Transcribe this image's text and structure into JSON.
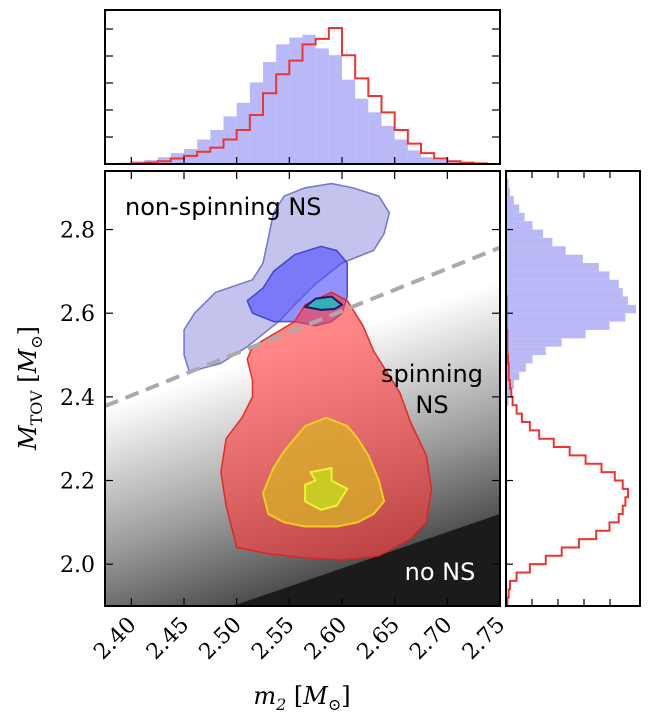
{
  "chart_data": {
    "type": "scatter",
    "xlabel": "m_2 [M_⊙]",
    "ylabel": "M_TOV [M_⊙]",
    "xlim": [
      2.375,
      2.75
    ],
    "ylim": [
      1.9,
      2.94
    ],
    "x_ticks": [
      2.4,
      2.45,
      2.5,
      2.55,
      2.6,
      2.65,
      2.7,
      2.75
    ],
    "x_tick_labels": [
      "2.40",
      "2.45",
      "2.50",
      "2.55",
      "2.60",
      "2.65",
      "2.70",
      "2.75"
    ],
    "y_ticks": [
      2.0,
      2.2,
      2.4,
      2.6,
      2.8
    ],
    "y_tick_labels": [
      "2.0",
      "2.2",
      "2.4",
      "2.6",
      "2.8"
    ],
    "region_labels": {
      "non_spinning": "non-spinning NS",
      "spinning": [
        "spinning",
        "NS"
      ],
      "no_ns": "no NS"
    },
    "boundaries": {
      "dashed_line": {
        "x": [
          2.375,
          2.75
        ],
        "y": [
          2.378,
          2.757
        ]
      },
      "no_ns_line": {
        "x": [
          2.375,
          2.75
        ],
        "y": [
          1.795,
          2.12
        ]
      }
    },
    "contours": {
      "blue": {
        "color": "#5050dd",
        "outer": [
          [
            2.45,
            2.56
          ],
          [
            2.46,
            2.6
          ],
          [
            2.48,
            2.65
          ],
          [
            2.515,
            2.68
          ],
          [
            2.525,
            2.72
          ],
          [
            2.53,
            2.78
          ],
          [
            2.535,
            2.84
          ],
          [
            2.545,
            2.88
          ],
          [
            2.565,
            2.9
          ],
          [
            2.59,
            2.91
          ],
          [
            2.61,
            2.9
          ],
          [
            2.635,
            2.88
          ],
          [
            2.645,
            2.84
          ],
          [
            2.64,
            2.79
          ],
          [
            2.63,
            2.75
          ],
          [
            2.6,
            2.72
          ],
          [
            2.575,
            2.67
          ],
          [
            2.555,
            2.62
          ],
          [
            2.54,
            2.58
          ],
          [
            2.51,
            2.52
          ],
          [
            2.485,
            2.48
          ],
          [
            2.455,
            2.46
          ],
          [
            2.45,
            2.5
          ]
        ],
        "middle": [
          [
            2.51,
            2.63
          ],
          [
            2.525,
            2.66
          ],
          [
            2.535,
            2.7
          ],
          [
            2.545,
            2.72
          ],
          [
            2.555,
            2.74
          ],
          [
            2.58,
            2.76
          ],
          [
            2.595,
            2.75
          ],
          [
            2.605,
            2.72
          ],
          [
            2.605,
            2.68
          ],
          [
            2.605,
            2.64
          ],
          [
            2.6,
            2.6
          ],
          [
            2.59,
            2.58
          ],
          [
            2.575,
            2.57
          ],
          [
            2.555,
            2.58
          ],
          [
            2.535,
            2.58
          ],
          [
            2.515,
            2.6
          ]
        ],
        "inner": [
          [
            2.565,
            2.615
          ],
          [
            2.575,
            2.635
          ],
          [
            2.59,
            2.64
          ],
          [
            2.6,
            2.62
          ],
          [
            2.593,
            2.61
          ],
          [
            2.58,
            2.608
          ]
        ]
      },
      "red": {
        "color": "#ee2222",
        "outer": [
          [
            2.5,
            2.04
          ],
          [
            2.49,
            2.14
          ],
          [
            2.485,
            2.22
          ],
          [
            2.49,
            2.3
          ],
          [
            2.505,
            2.35
          ],
          [
            2.515,
            2.4
          ],
          [
            2.515,
            2.44
          ],
          [
            2.51,
            2.49
          ],
          [
            2.515,
            2.52
          ],
          [
            2.535,
            2.55
          ],
          [
            2.555,
            2.58
          ],
          [
            2.565,
            2.62
          ],
          [
            2.59,
            2.65
          ],
          [
            2.605,
            2.63
          ],
          [
            2.62,
            2.57
          ],
          [
            2.63,
            2.51
          ],
          [
            2.64,
            2.47
          ],
          [
            2.655,
            2.41
          ],
          [
            2.665,
            2.34
          ],
          [
            2.68,
            2.26
          ],
          [
            2.685,
            2.18
          ],
          [
            2.68,
            2.1
          ],
          [
            2.665,
            2.06
          ],
          [
            2.635,
            2.02
          ],
          [
            2.6,
            2.01
          ],
          [
            2.565,
            2.015
          ],
          [
            2.53,
            2.025
          ]
        ],
        "middle": [
          [
            2.53,
            2.12
          ],
          [
            2.525,
            2.17
          ],
          [
            2.535,
            2.23
          ],
          [
            2.545,
            2.27
          ],
          [
            2.555,
            2.3
          ],
          [
            2.565,
            2.33
          ],
          [
            2.585,
            2.35
          ],
          [
            2.605,
            2.33
          ],
          [
            2.615,
            2.3
          ],
          [
            2.625,
            2.26
          ],
          [
            2.635,
            2.2
          ],
          [
            2.64,
            2.15
          ],
          [
            2.63,
            2.12
          ],
          [
            2.615,
            2.1
          ],
          [
            2.595,
            2.09
          ],
          [
            2.565,
            2.09
          ],
          [
            2.545,
            2.1
          ]
        ],
        "inner": [
          [
            2.565,
            2.15
          ],
          [
            2.565,
            2.19
          ],
          [
            2.575,
            2.2
          ],
          [
            2.57,
            2.22
          ],
          [
            2.59,
            2.23
          ],
          [
            2.59,
            2.2
          ],
          [
            2.605,
            2.18
          ],
          [
            2.595,
            2.14
          ],
          [
            2.58,
            2.13
          ]
        ]
      }
    },
    "top_histogram": {
      "bin_edges": [
        2.375,
        2.3875,
        2.4,
        2.4125,
        2.425,
        2.4375,
        2.45,
        2.4625,
        2.475,
        2.4875,
        2.5,
        2.5125,
        2.525,
        2.5375,
        2.55,
        2.5625,
        2.575,
        2.5875,
        2.6,
        2.6125,
        2.625,
        2.6375,
        2.65,
        2.6625,
        2.675,
        2.6875,
        2.7,
        2.7125,
        2.725,
        2.7375,
        2.75
      ],
      "blue_counts": [
        0,
        0.01,
        0.02,
        0.03,
        0.05,
        0.08,
        0.11,
        0.18,
        0.25,
        0.35,
        0.45,
        0.6,
        0.75,
        0.88,
        0.93,
        0.95,
        0.85,
        0.8,
        0.62,
        0.48,
        0.38,
        0.28,
        0.18,
        0.1,
        0.05,
        0.03,
        0.02,
        0.01,
        0,
        0
      ],
      "red_counts": [
        0,
        0,
        0.005,
        0.01,
        0.02,
        0.04,
        0.06,
        0.09,
        0.12,
        0.18,
        0.25,
        0.36,
        0.52,
        0.66,
        0.76,
        0.88,
        0.92,
        1.0,
        0.8,
        0.63,
        0.5,
        0.38,
        0.25,
        0.15,
        0.08,
        0.04,
        0.02,
        0.01,
        0.005,
        0
      ]
    },
    "right_histogram": {
      "bin_edges": [
        1.9,
        1.92,
        1.94,
        1.96,
        1.98,
        2.0,
        2.02,
        2.04,
        2.06,
        2.08,
        2.1,
        2.12,
        2.14,
        2.16,
        2.18,
        2.2,
        2.22,
        2.24,
        2.26,
        2.28,
        2.3,
        2.32,
        2.34,
        2.36,
        2.38,
        2.4,
        2.42,
        2.44,
        2.46,
        2.48,
        2.5,
        2.52,
        2.54,
        2.56,
        2.58,
        2.6,
        2.62,
        2.64,
        2.66,
        2.68,
        2.7,
        2.72,
        2.74,
        2.76,
        2.78,
        2.8,
        2.82,
        2.84,
        2.86,
        2.88,
        2.9,
        2.92,
        2.94
      ],
      "blue_counts": [
        0,
        0,
        0,
        0,
        0,
        0,
        0,
        0,
        0,
        0,
        0,
        0,
        0,
        0,
        0,
        0,
        0,
        0,
        0,
        0,
        0,
        0,
        0,
        0,
        0.02,
        0.04,
        0.06,
        0.1,
        0.15,
        0.2,
        0.3,
        0.42,
        0.6,
        0.78,
        0.9,
        0.98,
        0.92,
        0.88,
        0.85,
        0.78,
        0.7,
        0.58,
        0.45,
        0.35,
        0.28,
        0.2,
        0.14,
        0.1,
        0.06,
        0.03,
        0.02,
        0.01
      ],
      "red_counts": [
        0.01,
        0.02,
        0.03,
        0.08,
        0.18,
        0.3,
        0.42,
        0.55,
        0.68,
        0.78,
        0.85,
        0.88,
        0.9,
        0.92,
        0.88,
        0.82,
        0.72,
        0.6,
        0.48,
        0.36,
        0.25,
        0.18,
        0.12,
        0.08,
        0.05,
        0.04,
        0.03,
        0.02,
        0.02,
        0.015,
        0.01,
        0.01,
        0.01,
        0.005,
        0.005,
        0.005,
        0.005,
        0,
        0,
        0,
        0,
        0,
        0,
        0,
        0,
        0,
        0,
        0,
        0,
        0,
        0,
        0
      ]
    }
  }
}
